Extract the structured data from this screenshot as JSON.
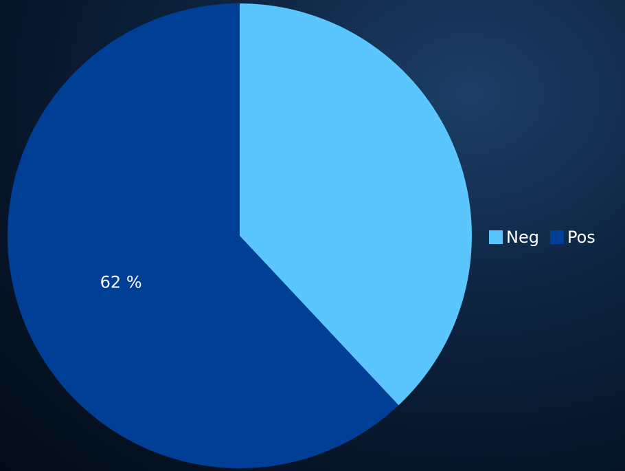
{
  "chart_data": {
    "type": "pie",
    "categories": [
      "Neg",
      "Pos"
    ],
    "values": [
      38,
      62
    ],
    "value_labels": [
      null,
      "62 %"
    ],
    "colors": [
      "#5bc5fd",
      "#003f96"
    ],
    "legend": "right"
  }
}
